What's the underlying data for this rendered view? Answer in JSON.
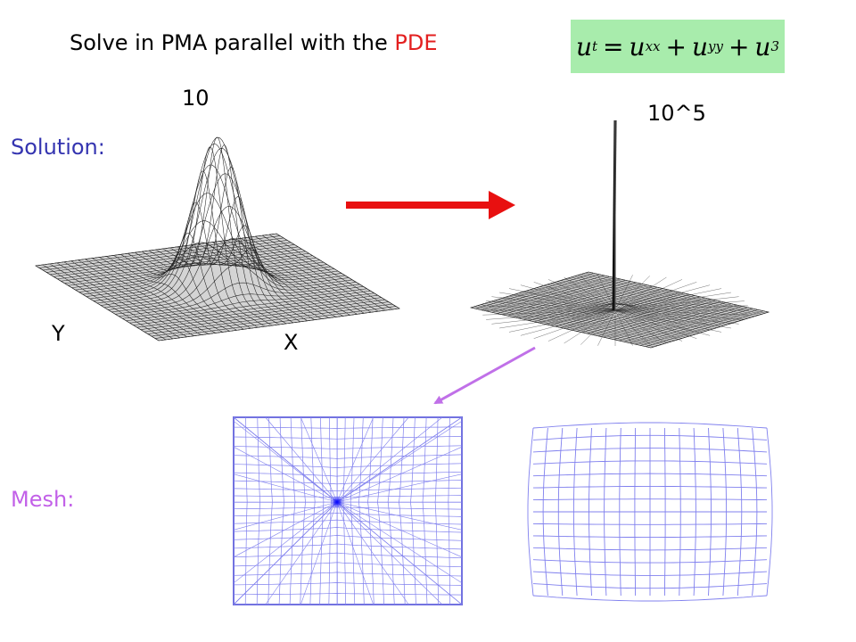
{
  "title": {
    "prefix": "Solve in PMA parallel with the ",
    "highlight": "PDE"
  },
  "equation": {
    "lhs": "u",
    "lhs_sub": "t",
    "t1": "u",
    "t1_sub": "xx",
    "t2": "u",
    "t2_sub": "yy",
    "t3": "u",
    "t3_sup": "3",
    "eq": "=",
    "plus": "+"
  },
  "labels": {
    "solution": "Solution:",
    "mesh": "Mesh:",
    "peak_left": "10",
    "peak_right": "10^5",
    "axis_y": "Y",
    "axis_x": "X"
  },
  "colors": {
    "title_highlight": "#e32020",
    "equation_bg": "#a8ecac",
    "solution_label": "#3434b0",
    "mesh_label": "#c260e8",
    "red_arrow": "#e81010",
    "purple_arrow": "#c070e8",
    "mesh_lines": "#8080ee"
  }
}
